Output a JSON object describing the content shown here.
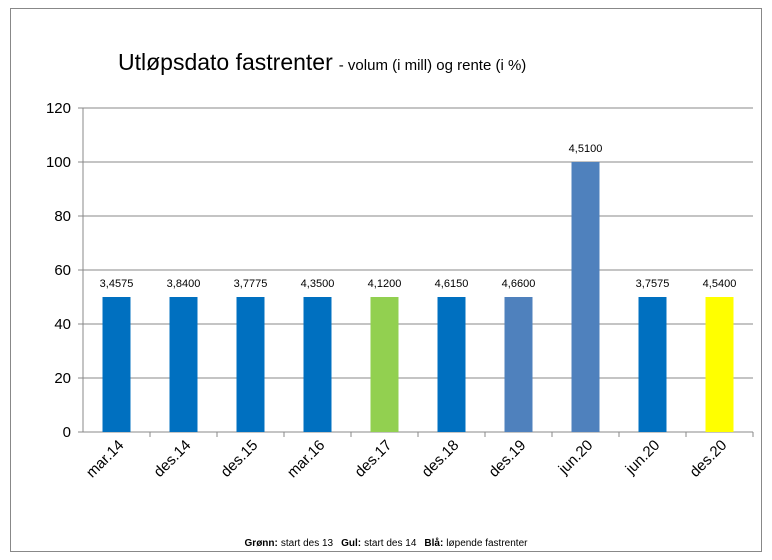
{
  "chart_data": {
    "type": "bar",
    "title": "Utløpsdato fastrenter",
    "subtitle": "- volum (i mill) og rente (i %)",
    "categories": [
      "mar.14",
      "des.14",
      "des.15",
      "mar.16",
      "des.17",
      "des.18",
      "des.19",
      "jun.20",
      "jun.20",
      "des.20"
    ],
    "values": [
      50,
      50,
      50,
      50,
      50,
      50,
      50,
      100,
      50,
      50
    ],
    "colors": [
      "#0070c0",
      "#0070c0",
      "#0070c0",
      "#0070c0",
      "#92d050",
      "#0070c0",
      "#4f81bd",
      "#4f81bd",
      "#0070c0",
      "#ffff00"
    ],
    "annotations": [
      "3,4575",
      "3,8400",
      "3,7775",
      "4,3500",
      "4,1200",
      "4,6150",
      "4,6600",
      "4,5100",
      "3,7575",
      "4,5400"
    ],
    "ylim": [
      0,
      120
    ],
    "yticks": [
      0,
      20,
      40,
      60,
      80,
      100,
      120
    ],
    "grid": true,
    "note": [
      {
        "label": "Grønn:",
        "text": "start des 13"
      },
      {
        "label": "Gul:",
        "text": "start des 14"
      },
      {
        "label": "Blå:",
        "text": "løpende fastrenter"
      }
    ]
  }
}
